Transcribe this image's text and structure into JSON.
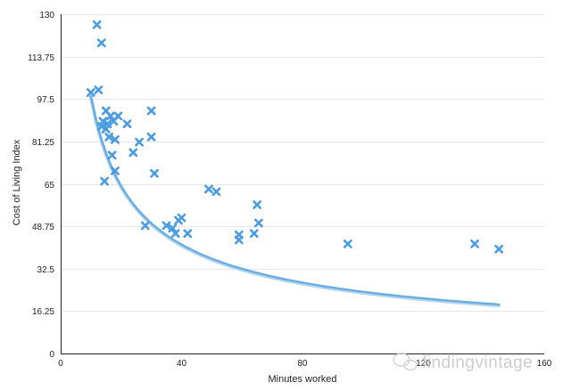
{
  "chart_data": {
    "type": "scatter",
    "xlabel": "Minutes worked",
    "ylabel": "Cost of Living Index",
    "xlim": [
      0,
      160
    ],
    "ylim": [
      0,
      130
    ],
    "x_ticks": [
      "0",
      "40",
      "80",
      "120",
      "160"
    ],
    "y_ticks": [
      "0",
      "16.25",
      "32.5",
      "48.75",
      "65",
      "81.25",
      "97.5",
      "113.75",
      "130"
    ],
    "grid": "horizontal",
    "marker": "x",
    "colors": {
      "points": "#4a9be0",
      "trend": "#6aaee3",
      "axis": "#222222",
      "grid": "#e6e6e6"
    },
    "series": [
      {
        "points": [
          [
            10,
            100
          ],
          [
            12,
            126
          ],
          [
            12.5,
            101
          ],
          [
            13.5,
            119
          ],
          [
            13.5,
            87
          ],
          [
            14,
            89
          ],
          [
            14.5,
            66
          ],
          [
            15,
            93
          ],
          [
            15,
            86
          ],
          [
            15.5,
            88
          ],
          [
            16,
            83
          ],
          [
            16.5,
            91
          ],
          [
            17,
            76
          ],
          [
            17.5,
            89
          ],
          [
            18,
            70
          ],
          [
            18,
            82
          ],
          [
            19,
            91
          ],
          [
            22,
            88
          ],
          [
            24,
            77
          ],
          [
            26,
            81
          ],
          [
            28,
            49
          ],
          [
            30,
            93
          ],
          [
            30,
            83
          ],
          [
            31,
            69
          ],
          [
            35,
            49
          ],
          [
            37,
            48
          ],
          [
            38,
            46
          ],
          [
            39,
            51
          ],
          [
            40,
            52
          ],
          [
            42,
            46
          ],
          [
            49,
            63
          ],
          [
            51.5,
            62
          ],
          [
            59,
            45.5
          ],
          [
            59,
            43.5
          ],
          [
            64,
            46
          ],
          [
            65,
            57
          ],
          [
            65.5,
            50
          ],
          [
            95,
            42
          ],
          [
            137,
            42
          ],
          [
            145,
            40
          ]
        ]
      }
    ],
    "trendline": {
      "type": "power",
      "a": 411,
      "b": -0.62,
      "x_range": [
        10,
        145
      ]
    }
  },
  "watermark": {
    "text": "findingvintage"
  }
}
